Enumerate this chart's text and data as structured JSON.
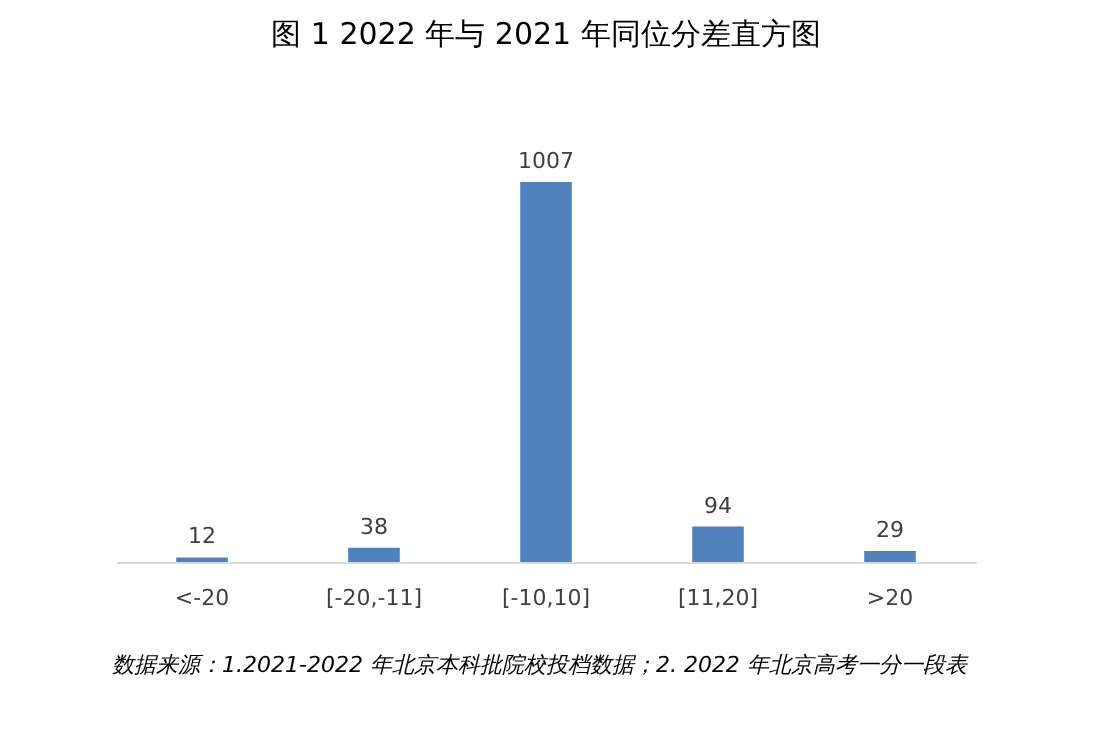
{
  "chart_data": {
    "type": "bar",
    "title": "图 1 2022 年与 2021 年同位分差直方图",
    "categories": [
      "<-20",
      "[-20,-11]",
      "[-10,10]",
      "[11,20]",
      ">20"
    ],
    "values": [
      12,
      38,
      1007,
      94,
      29
    ],
    "color": "#4f81bd",
    "data_labels": true,
    "annotations": [
      "数据来源：1.2021-2022 年北京本科批院校投档数据；2. 2022 年北京高考一分一段表"
    ]
  }
}
